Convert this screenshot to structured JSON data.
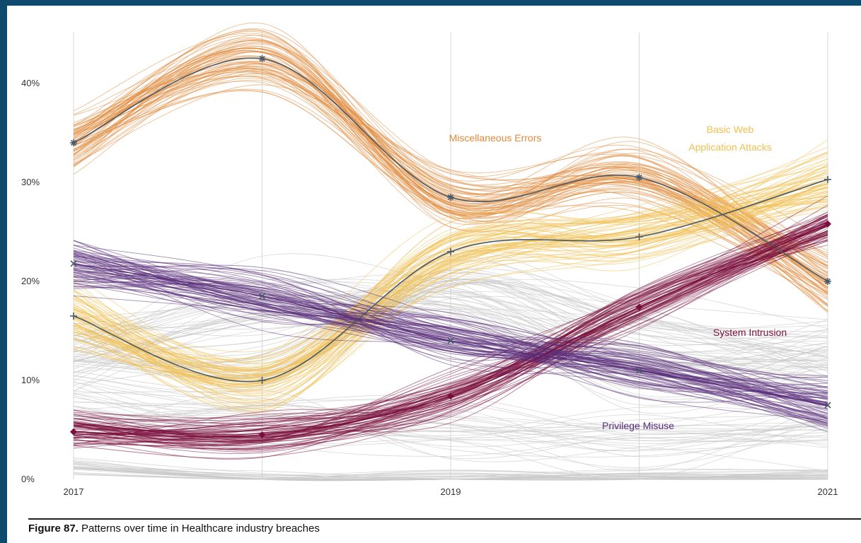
{
  "caption": {
    "figure_label": "Figure 87.",
    "text": "Patterns over time in Healthcare industry breaches"
  },
  "colors": {
    "misc": "#e08a3c",
    "web": "#f0c050",
    "sys": "#7a0f3d",
    "priv": "#5a2d7a",
    "grey": "#c9c9c9",
    "median": "#4a5a66",
    "background": "#0d4a6e"
  },
  "chart_data": {
    "type": "line",
    "title": "Patterns over time in Healthcare industry breaches",
    "xlabel": "",
    "ylabel": "",
    "x": [
      2017,
      2018,
      2019,
      2020,
      2021
    ],
    "x_tick_labels": [
      "2017",
      "",
      "2019",
      "",
      "2021"
    ],
    "ylim": [
      0,
      45
    ],
    "y_ticks": [
      0,
      10,
      20,
      30,
      40
    ],
    "y_tick_labels": [
      "0%",
      "10%",
      "20%",
      "30%",
      "40%"
    ],
    "grid": "vertical",
    "series": [
      {
        "name": "Miscellaneous Errors",
        "values": [
          34,
          42.5,
          28.5,
          30.5,
          20
        ],
        "color_key": "misc",
        "marker": "asterisk"
      },
      {
        "name": "Basic Web Application Attacks",
        "values": [
          16.5,
          10,
          23,
          24.5,
          30.3
        ],
        "color_key": "web",
        "marker": "plus"
      },
      {
        "name": "System Intrusion",
        "values": [
          4.8,
          4.5,
          8.4,
          17.4,
          25.8
        ],
        "color_key": "sys",
        "marker": "diamond"
      },
      {
        "name": "Privilege Misuse",
        "values": [
          21.8,
          18.5,
          14,
          11,
          7.5
        ],
        "color_key": "priv",
        "marker": "x"
      }
    ],
    "annotations": [
      {
        "text": "Miscellaneous Errors",
        "color_key": "misc"
      },
      {
        "text": "Basic Web",
        "color_key": "web"
      },
      {
        "text": "Application Attacks",
        "color_key": "web"
      },
      {
        "text": "System Intrusion",
        "color_key": "sys"
      },
      {
        "text": "Privilege Misuse",
        "color_key": "priv"
      }
    ]
  }
}
